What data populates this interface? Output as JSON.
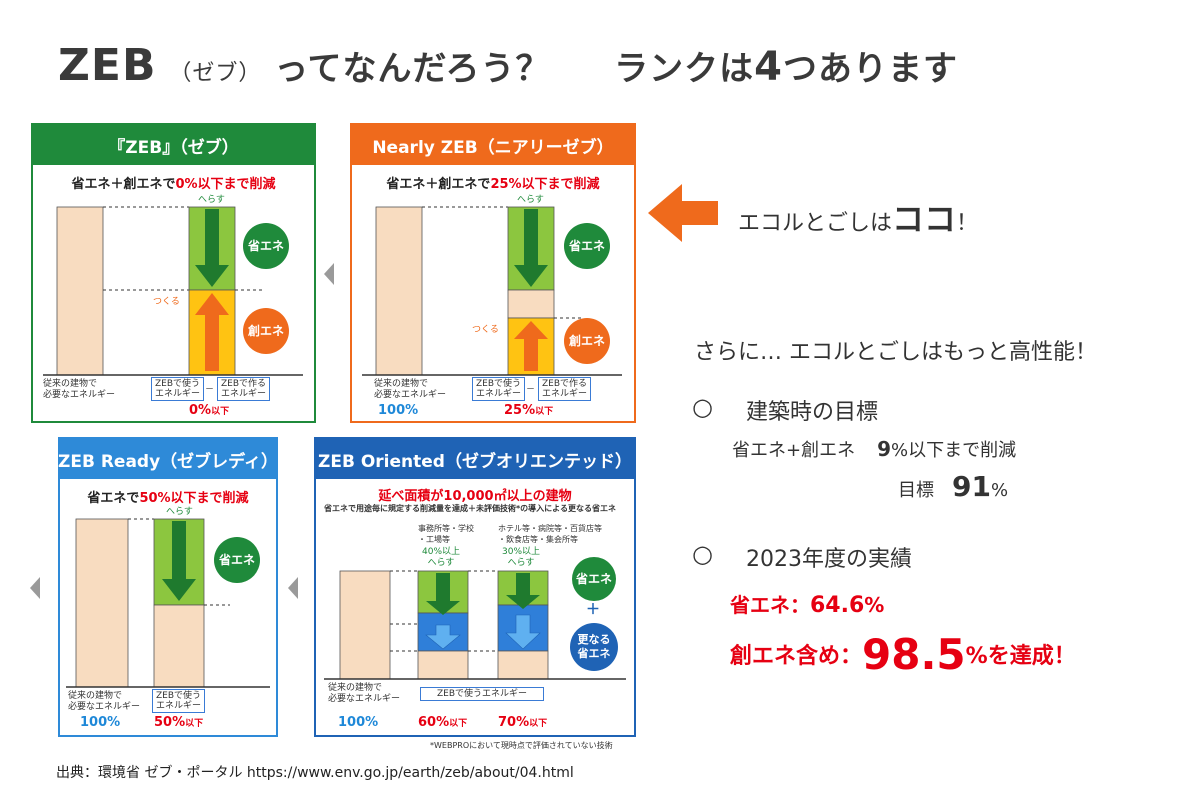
{
  "title": {
    "zeb": "ZEB",
    "reading": "（ゼブ）",
    "question": "ってなんだろう？",
    "ranks_pre": "ランクは",
    "ranks_num": "4",
    "ranks_post": "つあります"
  },
  "cards": {
    "zeb": {
      "header": "『ZEB』（ゼブ）",
      "subtitle_pre": "省エネ＋創エネで",
      "subtitle_red": "0%以下まで削減",
      "reduce": "へらす",
      "make": "つくる",
      "save_circle": "省エネ",
      "create_circle": "創エネ",
      "base_label": "従来の建物で\n必要なエネルギー",
      "use_label": "ZEBで使う\nエネルギー",
      "minus": "－",
      "make_label": "ZEBで作る\nエネルギー",
      "result": "0%",
      "result_suffix": "以下"
    },
    "nearly": {
      "header": "Nearly ZEB（ニアリーゼブ）",
      "subtitle_pre": "省エネ＋創エネで",
      "subtitle_red": "25%以下まで削減",
      "reduce": "へらす",
      "make": "つくる",
      "save_circle": "省エネ",
      "create_circle": "創エネ",
      "base_label": "従来の建物で\n必要なエネルギー",
      "base_pct": "100%",
      "use_label": "ZEBで使う\nエネルギー",
      "minus": "－",
      "make_label": "ZEBで作る\nエネルギー",
      "result": "25%",
      "result_suffix": "以下"
    },
    "ready": {
      "header": "ZEB Ready（ゼブレディ）",
      "subtitle_pre": "省エネで",
      "subtitle_red": "50%以下まで削減",
      "reduce": "へらす",
      "save_circle": "省エネ",
      "base_label": "従来の建物で\n必要なエネルギー",
      "base_pct": "100%",
      "use_label": "ZEBで使う\nエネルギー",
      "result": "50%",
      "result_suffix": "以下"
    },
    "oriented": {
      "header": "ZEB Oriented（ゼブオリエンテッド）",
      "subtitle_red": "延べ面積が10,000㎡以上の建物",
      "note": "省エネで用途毎に規定する削減量を達成＋未評価技術*の導入による更なる省エネ",
      "col1_label": "事務所等・学校\n・工場等",
      "col2_label": "ホテル等・病院等・百貨店等\n・飲食店等・集会所等",
      "col1_reduce": "40%以上\nへらす",
      "col2_reduce": "30%以上\nへらす",
      "save_circle": "省エネ",
      "plus": "＋",
      "more_circle": "更なる\n省エネ",
      "base_label": "従来の建物で\n必要なエネルギー",
      "base_pct": "100%",
      "use_label": "ZEBで使うエネルギー",
      "result1": "60%",
      "result2": "70%",
      "result_suffix": "以下",
      "footnote": "*WEBPROにおいて現時点で評価されていない技術"
    }
  },
  "right": {
    "callout_pre": "エコルとごしは",
    "callout_big": "ココ",
    "callout_post": "！",
    "more": "さらに… エコルとごしはもっと高性能！",
    "goal_heading": "建築時の目標",
    "goal_line1_pre": "省エネ+創エネ",
    "goal_line1_num": "9",
    "goal_line1_post": "%以下まで削減",
    "goal_line2_pre": "目標",
    "goal_line2_num": "91",
    "goal_line2_post": "%",
    "result_heading": "2023年度の実績",
    "save_label": "省エネ：",
    "save_value": "64.6",
    "save_unit": "%",
    "create_label": "創エネ含め：",
    "create_value": "98.5",
    "create_post": "%を達成！",
    "bullet": "○"
  },
  "source": "出典：環境省 ゼブ・ポータル https://www.env.go.jp/earth/zeb/about/04.html",
  "colors": {
    "zeb_green": "#1f8a3b",
    "nearly_orange": "#ef6a1c",
    "ready_blue": "#2e8ad8",
    "oriented_blue": "#1f63b5",
    "accent_red": "#e60012",
    "text_blue": "#1e88d8",
    "callout_arrow": "#ef6a1c"
  }
}
